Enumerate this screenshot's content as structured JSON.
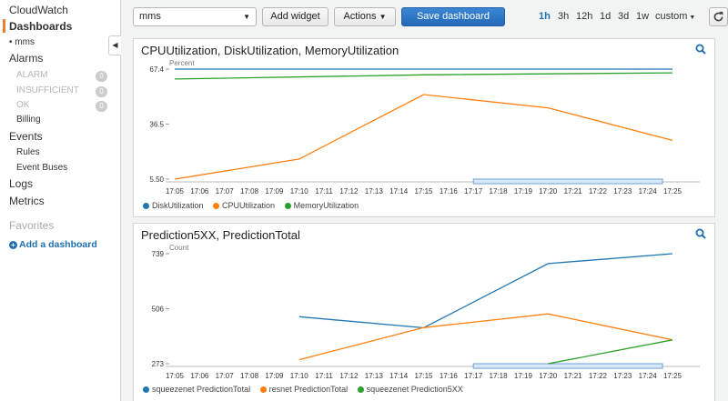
{
  "sidebar": {
    "title": "CloudWatch",
    "dashboards": "Dashboards",
    "dashboard_item": "mms",
    "alarms": "Alarms",
    "alarm_states": [
      {
        "label": "ALARM",
        "count": "0"
      },
      {
        "label": "INSUFFICIENT",
        "count": "0"
      },
      {
        "label": "OK",
        "count": "0"
      }
    ],
    "billing": "Billing",
    "events": "Events",
    "rules": "Rules",
    "event_buses": "Event Buses",
    "logs": "Logs",
    "metrics": "Metrics",
    "favorites": "Favorites",
    "add_dashboard": "Add a dashboard"
  },
  "toolbar": {
    "dashboard_select": "mms",
    "add_widget": "Add widget",
    "actions": "Actions",
    "save": "Save dashboard",
    "ranges": [
      "1h",
      "3h",
      "12h",
      "1d",
      "3d",
      "1w"
    ],
    "selected_range": "1h",
    "custom": "custom"
  },
  "panels": [
    {
      "title": "CPUUtilization, DiskUtilization, MemoryUtilization",
      "chart_data": {
        "type": "line",
        "ylabel": "Percent",
        "ylim": [
          5.5,
          67.4
        ],
        "y_ticks": [
          "67.4",
          "36.5",
          "5.50"
        ],
        "x_ticks": [
          "17:05",
          "17:06",
          "17:07",
          "17:08",
          "17:09",
          "17:10",
          "17:11",
          "17:12",
          "17:13",
          "17:14",
          "17:15",
          "17:16",
          "17:17",
          "17:18",
          "17:19",
          "17:20",
          "17:21",
          "17:22",
          "17:23",
          "17:24",
          "17:25"
        ],
        "series": [
          {
            "name": "DiskUtilization",
            "color": "#1f77b4",
            "points": [
              [
                0,
                67.4
              ],
              [
                20,
                67.4
              ]
            ]
          },
          {
            "name": "CPUUtilization",
            "color": "#ff7f0e",
            "points": [
              [
                0,
                5.5
              ],
              [
                5,
                16.8
              ],
              [
                10,
                53.1
              ],
              [
                15,
                45.6
              ],
              [
                20,
                27.3
              ]
            ]
          },
          {
            "name": "MemoryUtilization",
            "color": "#2ca02c",
            "points": [
              [
                0,
                61.8
              ],
              [
                10,
                64.2
              ],
              [
                20,
                65.3
              ]
            ]
          }
        ]
      }
    },
    {
      "title": "Prediction5XX, PredictionTotal",
      "chart_data": {
        "type": "line",
        "ylabel": "Count",
        "ylim": [
          273,
          739
        ],
        "y_ticks": [
          "739",
          "506",
          "273"
        ],
        "x_ticks": [
          "17:05",
          "17:06",
          "17:07",
          "17:08",
          "17:09",
          "17:10",
          "17:11",
          "17:12",
          "17:13",
          "17:14",
          "17:15",
          "17:16",
          "17:17",
          "17:18",
          "17:19",
          "17:20",
          "17:21",
          "17:22",
          "17:23",
          "17:24",
          "17:25"
        ],
        "series": [
          {
            "name": "squeezenet PredictionTotal",
            "color": "#1f77b4",
            "points": [
              [
                5,
                472
              ],
              [
                10,
                425
              ],
              [
                15,
                697
              ],
              [
                20,
                739
              ]
            ]
          },
          {
            "name": "resnet PredictionTotal",
            "color": "#ff7f0e",
            "points": [
              [
                5,
                290
              ],
              [
                10,
                426
              ],
              [
                15,
                484
              ],
              [
                20,
                374
              ]
            ]
          },
          {
            "name": "squeezenet Prediction5XX",
            "color": "#2ca02c",
            "points": [
              [
                15,
                273
              ],
              [
                20,
                374
              ]
            ]
          }
        ]
      }
    }
  ]
}
